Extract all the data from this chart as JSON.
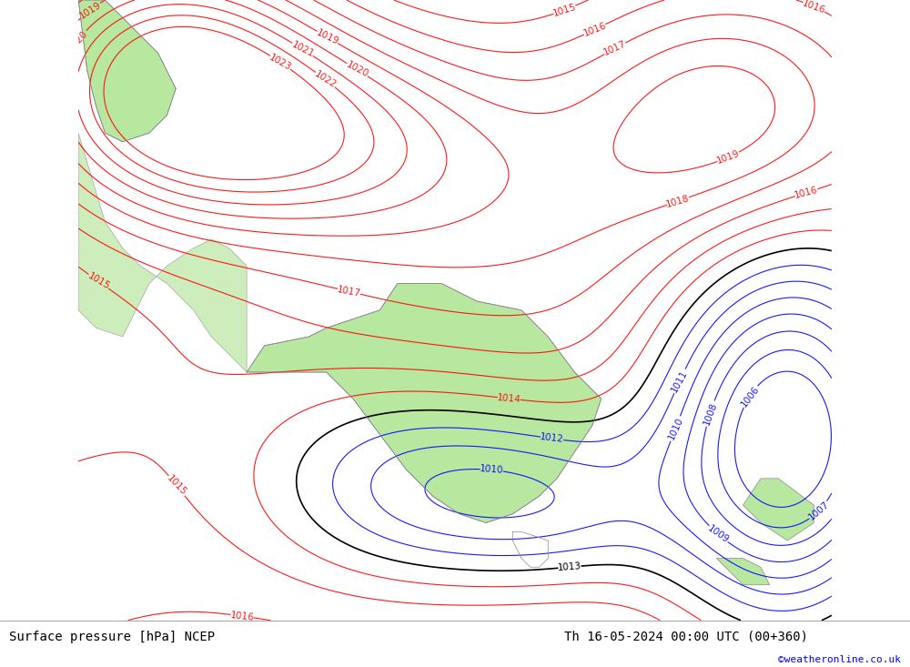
{
  "title_left": "Surface pressure [hPa] NCEP",
  "title_right": "Th 16-05-2024 00:00 UTC (00+360)",
  "watermark": "©weatheronline.co.uk",
  "bg_color": "#c8c8c8",
  "land_color": "#b8e8a0",
  "fig_width": 10.0,
  "fig_height": 7.33,
  "dpi": 100,
  "bottom_bar_color": "#f0f0f0",
  "label_fontsize": 9,
  "title_fontsize": 10
}
